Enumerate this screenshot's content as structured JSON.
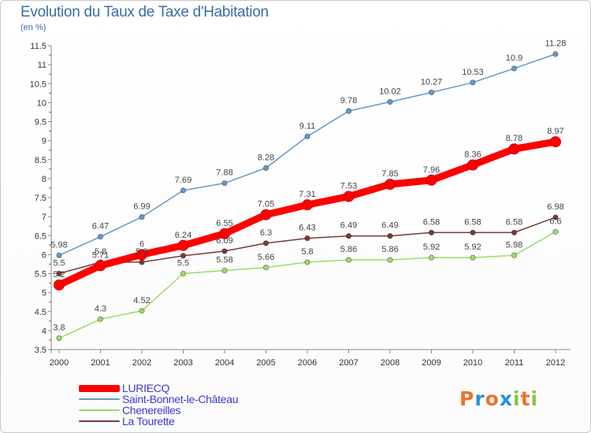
{
  "header": {
    "title": "Evolution du Taux de Taxe d'Habitation",
    "unit": "(en %)"
  },
  "logo": {
    "letters": [
      "P",
      "r",
      "o",
      "x",
      "i",
      "t",
      "i"
    ],
    "colors": [
      "#e8732c",
      "#2d8fd6",
      "#e8732c",
      "#2d8fd6",
      "#8cc63f",
      "#e8732c",
      "#8cc63f"
    ]
  },
  "chart_data": {
    "type": "line",
    "title": "Evolution du Taux de Taxe d'Habitation",
    "ylabel": "(en %)",
    "xlabel": "",
    "x": [
      "2000",
      "2001",
      "2002",
      "2003",
      "2004",
      "2005",
      "2006",
      "2007",
      "2008",
      "2009",
      "2010",
      "2011",
      "2012"
    ],
    "ylim": [
      3.5,
      11.5
    ],
    "yticks": [
      "3.5",
      "4",
      "4.5",
      "5",
      "5.5",
      "6",
      "6.5",
      "7",
      "7.5",
      "8",
      "8.5",
      "9",
      "9.5",
      "10",
      "10.5",
      "11",
      "11.5"
    ],
    "grid": false,
    "legend_position": "bottom-left",
    "series": [
      {
        "name": "LURIECQ",
        "color": "#ff0000",
        "values": [
          5.2,
          5.71,
          6,
          6.24,
          6.55,
          7.05,
          7.31,
          7.53,
          7.85,
          7.96,
          8.36,
          8.78,
          8.97
        ],
        "labels": [
          "5.2",
          "5.71",
          "6",
          "6.24",
          "6.55",
          "7.05",
          "7.31",
          "7.53",
          "7.85",
          "7.96",
          "8.36",
          "8.78",
          "8.97"
        ]
      },
      {
        "name": "Saint-Bonnet-le-Château",
        "color": "#6699cc",
        "values": [
          5.98,
          6.47,
          6.99,
          7.69,
          7.88,
          8.28,
          9.11,
          9.78,
          10.02,
          10.27,
          10.53,
          10.9,
          11.28
        ],
        "labels": [
          "5.98",
          "6.47",
          "6.99",
          "7.69",
          "7.88",
          "8.28",
          "9.11",
          "9.78",
          "10.02",
          "10.27",
          "10.53",
          "10.9",
          "11.28"
        ]
      },
      {
        "name": "Chenereilles",
        "color": "#99dd66",
        "values": [
          3.8,
          4.3,
          4.52,
          5.5,
          5.58,
          5.66,
          5.8,
          5.86,
          5.86,
          5.92,
          5.92,
          5.98,
          6.6
        ],
        "labels": [
          "3.8",
          "4.3",
          "4.52",
          "5.5",
          "5.58",
          "5.66",
          "5.8",
          "5.86",
          "5.86",
          "5.92",
          "5.92",
          "5.98",
          "6.6"
        ]
      },
      {
        "name": "La Tourette",
        "color": "#7a3a3a",
        "values": [
          5.5,
          5.8,
          5.8,
          5.97,
          6.09,
          6.3,
          6.43,
          6.49,
          6.49,
          6.58,
          6.58,
          6.58,
          6.98
        ],
        "labels": [
          "5.5",
          "5.8",
          "5.8",
          "",
          "6.09",
          "6.3",
          "6.43",
          "6.49",
          "6.49",
          "6.58",
          "6.58",
          "6.58",
          "6.98"
        ]
      }
    ]
  }
}
